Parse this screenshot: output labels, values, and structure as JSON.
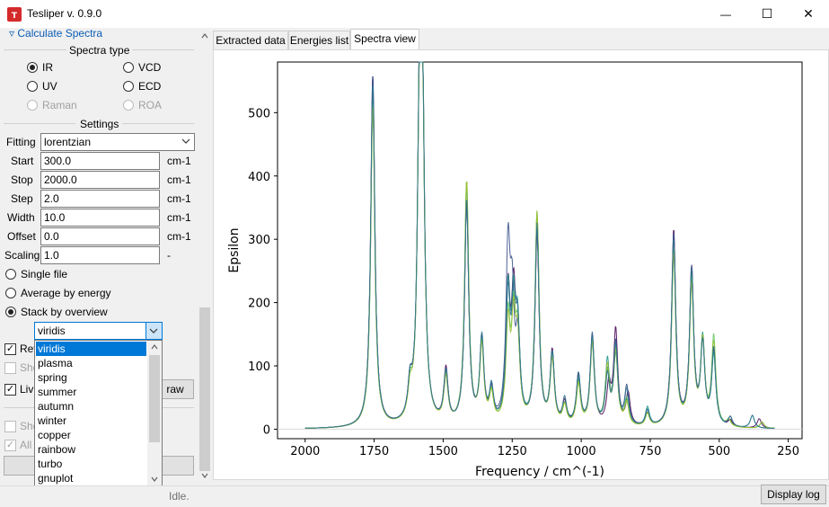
{
  "window": {
    "title": "Tesliper v. 0.9.0",
    "minimize": "—",
    "maximize": "☐",
    "close": "✕"
  },
  "left_panel": {
    "section_header": "▿ Calculate Spectra",
    "spectra_type": {
      "label": "Spectra type",
      "options": [
        {
          "label": "IR",
          "checked": true,
          "enabled": true
        },
        {
          "label": "VCD",
          "checked": false,
          "enabled": true
        },
        {
          "label": "UV",
          "checked": false,
          "enabled": true
        },
        {
          "label": "ECD",
          "checked": false,
          "enabled": true
        },
        {
          "label": "Raman",
          "checked": false,
          "enabled": false
        },
        {
          "label": "ROA",
          "checked": false,
          "enabled": false
        }
      ]
    },
    "settings": {
      "label": "Settings",
      "fitting_label": "Fitting",
      "fitting_value": "lorentzian",
      "rows": [
        {
          "label": "Start",
          "value": "300.0",
          "unit": "cm-1"
        },
        {
          "label": "Stop",
          "value": "2000.0",
          "unit": "cm-1"
        },
        {
          "label": "Step",
          "value": "2.0",
          "unit": "cm-1"
        },
        {
          "label": "Width",
          "value": "10.0",
          "unit": "cm-1"
        },
        {
          "label": "Offset",
          "value": "0.0",
          "unit": "cm-1"
        },
        {
          "label": "Scaling",
          "value": "1.0",
          "unit": "-"
        }
      ]
    },
    "mode": {
      "options": [
        {
          "label": "Single file",
          "checked": false
        },
        {
          "label": "Average by energy",
          "checked": false
        },
        {
          "label": "Stack by overview",
          "checked": true
        }
      ]
    },
    "colormap": {
      "value": "viridis",
      "options": [
        "viridis",
        "plasma",
        "spring",
        "summer",
        "autumn",
        "winter",
        "copper",
        "rainbow",
        "turbo",
        "gnuplot"
      ],
      "selected": "viridis"
    },
    "partial": {
      "rev_label": "Rev",
      "sho_label": "Sho",
      "liv_label": "Liv",
      "redraw_tail": "raw",
      "sho2_label": "Sho",
      "all_label": "All"
    }
  },
  "tabs": [
    {
      "label": "Extracted data",
      "active": false
    },
    {
      "label": "Energies list",
      "active": false
    },
    {
      "label": "Spectra view",
      "active": true
    }
  ],
  "status": {
    "text": "Idle.",
    "log_button": "Display log"
  },
  "chart_data": {
    "type": "line",
    "title": "",
    "xlabel": "Frequency / cm^(-1)",
    "ylabel": "Epsilon",
    "xlim": [
      2100,
      200
    ],
    "ylim": [
      -15,
      580
    ],
    "xticks": [
      2000,
      1750,
      1500,
      1250,
      1000,
      750,
      500,
      250
    ],
    "yticks": [
      0,
      100,
      200,
      300,
      400,
      500
    ],
    "grid": false,
    "legend": "none",
    "colors": [
      "#440154",
      "#3b528b",
      "#21918c",
      "#5ec962",
      "#a0c030",
      "#2c728e"
    ],
    "series": [
      {
        "peaks": [
          [
            1755,
            555
          ],
          [
            1620,
            50
          ],
          [
            1585,
            475
          ],
          [
            1575,
            430
          ],
          [
            1490,
            85
          ],
          [
            1415,
            350
          ],
          [
            1360,
            130
          ],
          [
            1325,
            50
          ],
          [
            1265,
            200
          ],
          [
            1245,
            180
          ],
          [
            1230,
            130
          ],
          [
            1160,
            300
          ],
          [
            1105,
            115
          ],
          [
            1060,
            35
          ],
          [
            1010,
            80
          ],
          [
            960,
            140
          ],
          [
            900,
            60
          ],
          [
            875,
            150
          ],
          [
            830,
            50
          ],
          [
            760,
            20
          ],
          [
            665,
            310
          ],
          [
            600,
            245
          ],
          [
            560,
            130
          ],
          [
            520,
            120
          ],
          [
            460,
            10
          ],
          [
            355,
            15
          ]
        ]
      },
      {
        "peaks": [
          [
            1755,
            560
          ],
          [
            1620,
            50
          ],
          [
            1585,
            480
          ],
          [
            1575,
            440
          ],
          [
            1490,
            80
          ],
          [
            1415,
            345
          ],
          [
            1360,
            130
          ],
          [
            1325,
            50
          ],
          [
            1265,
            265
          ],
          [
            1250,
            170
          ],
          [
            1230,
            120
          ],
          [
            1160,
            305
          ],
          [
            1105,
            110
          ],
          [
            1060,
            30
          ],
          [
            1010,
            75
          ],
          [
            960,
            145
          ],
          [
            905,
            80
          ],
          [
            875,
            130
          ],
          [
            835,
            60
          ],
          [
            760,
            25
          ],
          [
            665,
            305
          ],
          [
            600,
            245
          ],
          [
            560,
            125
          ],
          [
            520,
            115
          ],
          [
            460,
            15
          ],
          [
            345,
            10
          ]
        ]
      },
      {
        "peaks": [
          [
            1755,
            520
          ],
          [
            1620,
            45
          ],
          [
            1585,
            470
          ],
          [
            1575,
            420
          ],
          [
            1490,
            75
          ],
          [
            1415,
            380
          ],
          [
            1360,
            125
          ],
          [
            1325,
            45
          ],
          [
            1265,
            200
          ],
          [
            1245,
            165
          ],
          [
            1230,
            140
          ],
          [
            1160,
            330
          ],
          [
            1105,
            110
          ],
          [
            1060,
            30
          ],
          [
            1010,
            70
          ],
          [
            960,
            130
          ],
          [
            905,
            100
          ],
          [
            875,
            110
          ],
          [
            835,
            40
          ],
          [
            760,
            30
          ],
          [
            665,
            280
          ],
          [
            600,
            225
          ],
          [
            560,
            135
          ],
          [
            520,
            110
          ],
          [
            465,
            10
          ],
          [
            380,
            20
          ]
        ]
      },
      {
        "peaks": [
          [
            1755,
            515
          ],
          [
            1620,
            45
          ],
          [
            1585,
            470
          ],
          [
            1575,
            425
          ],
          [
            1490,
            75
          ],
          [
            1415,
            385
          ],
          [
            1360,
            125
          ],
          [
            1325,
            45
          ],
          [
            1265,
            160
          ],
          [
            1245,
            150
          ],
          [
            1230,
            125
          ],
          [
            1160,
            335
          ],
          [
            1105,
            105
          ],
          [
            1060,
            30
          ],
          [
            1010,
            65
          ],
          [
            960,
            135
          ],
          [
            905,
            80
          ],
          [
            875,
            120
          ],
          [
            835,
            40
          ],
          [
            760,
            20
          ],
          [
            665,
            280
          ],
          [
            600,
            230
          ],
          [
            560,
            130
          ],
          [
            520,
            140
          ],
          [
            465,
            10
          ],
          [
            345,
            10
          ]
        ]
      },
      {
        "peaks": [
          [
            1755,
            510
          ],
          [
            1620,
            40
          ],
          [
            1585,
            465
          ],
          [
            1575,
            420
          ],
          [
            1490,
            70
          ],
          [
            1415,
            385
          ],
          [
            1360,
            120
          ],
          [
            1325,
            45
          ],
          [
            1265,
            150
          ],
          [
            1245,
            145
          ],
          [
            1230,
            120
          ],
          [
            1160,
            335
          ],
          [
            1105,
            100
          ],
          [
            1060,
            30
          ],
          [
            1010,
            65
          ],
          [
            960,
            130
          ],
          [
            905,
            90
          ],
          [
            875,
            115
          ],
          [
            835,
            35
          ],
          [
            760,
            20
          ],
          [
            665,
            275
          ],
          [
            600,
            220
          ],
          [
            560,
            130
          ],
          [
            520,
            130
          ],
          [
            465,
            10
          ],
          [
            345,
            10
          ]
        ]
      },
      {
        "peaks": [
          [
            1755,
            545
          ],
          [
            1620,
            50
          ],
          [
            1585,
            470
          ],
          [
            1575,
            435
          ],
          [
            1490,
            80
          ],
          [
            1415,
            355
          ],
          [
            1360,
            135
          ],
          [
            1325,
            55
          ],
          [
            1265,
            190
          ],
          [
            1245,
            160
          ],
          [
            1230,
            135
          ],
          [
            1160,
            315
          ],
          [
            1105,
            110
          ],
          [
            1060,
            40
          ],
          [
            1010,
            80
          ],
          [
            960,
            140
          ],
          [
            905,
            75
          ],
          [
            875,
            125
          ],
          [
            835,
            55
          ],
          [
            760,
            25
          ],
          [
            665,
            295
          ],
          [
            600,
            240
          ],
          [
            560,
            125
          ],
          [
            520,
            120
          ],
          [
            460,
            15
          ],
          [
            380,
            20
          ]
        ]
      }
    ]
  }
}
